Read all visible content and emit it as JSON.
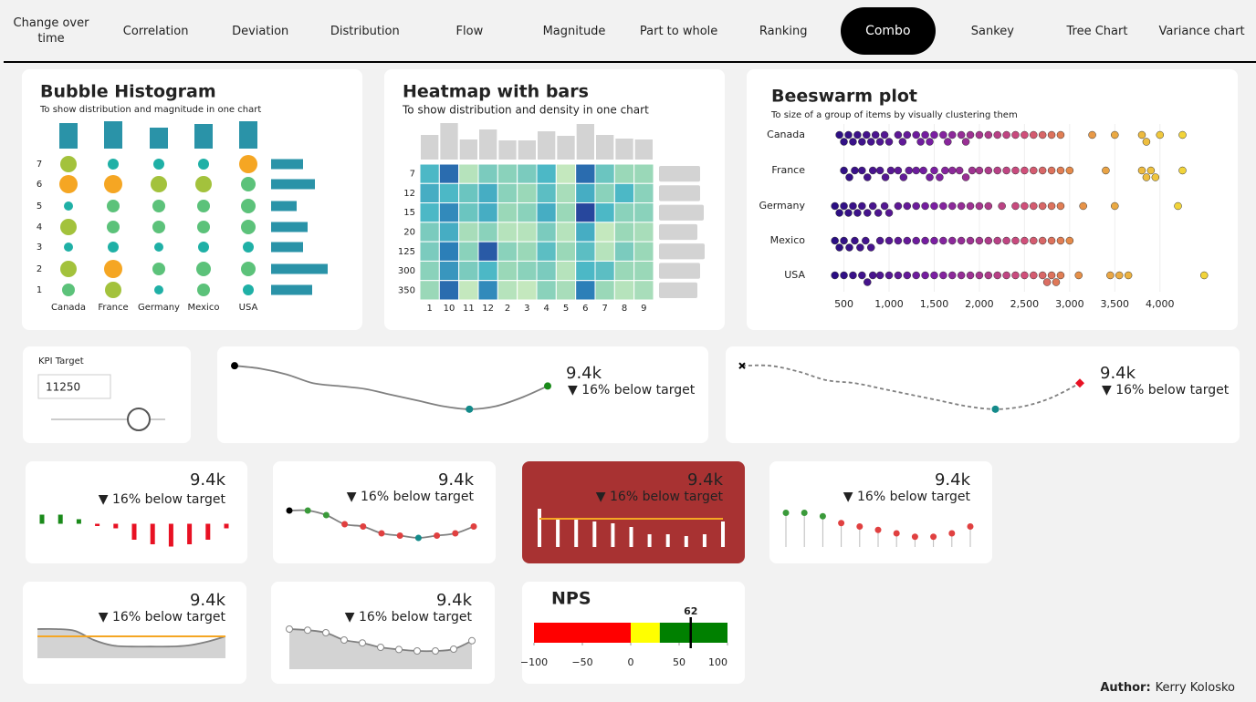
{
  "nav": {
    "items": [
      "Change over time",
      "Correlation",
      "Deviation",
      "Distribution",
      "Flow",
      "Magnitude",
      "Part to whole",
      "Ranking",
      "Combo",
      "Sankey",
      "Tree Chart",
      "Variance chart"
    ],
    "active": 8
  },
  "bubble_histogram": {
    "title": "Bubble Histogram",
    "subtitle": "To show distribution and magnitude in one chart",
    "categories": [
      "Canada",
      "France",
      "Germany",
      "Mexico",
      "USA"
    ],
    "rows": [
      "7",
      "6",
      "5",
      "4",
      "3",
      "2",
      "1"
    ],
    "sizes": [
      [
        9,
        6,
        6,
        6,
        10
      ],
      [
        10,
        10,
        9,
        9,
        8
      ],
      [
        5,
        7,
        7,
        7,
        8
      ],
      [
        9,
        7,
        7,
        7,
        8
      ],
      [
        5,
        6,
        5,
        6,
        6
      ],
      [
        9,
        10,
        7,
        8,
        8
      ],
      [
        7,
        9,
        5,
        7,
        6
      ]
    ],
    "column_bars": [
      28,
      30,
      23,
      27,
      30
    ],
    "row_bars": [
      35,
      48,
      28,
      40,
      35,
      62,
      45
    ],
    "bar_color": "#2a93a8",
    "size_colors": [
      {
        "min": 0,
        "color": "#1fb0a6"
      },
      {
        "min": 7,
        "color": "#5cc27a"
      },
      {
        "min": 9,
        "color": "#a3c23c"
      },
      {
        "min": 10,
        "color": "#f5a623"
      }
    ]
  },
  "heatmap": {
    "title": "Heatmap with bars",
    "subtitle": "To show distribution and density in one chart",
    "rows": [
      "7",
      "12",
      "15",
      "20",
      "125",
      "300",
      "350"
    ],
    "columns": [
      "1",
      "10",
      "11",
      "12",
      "2",
      "3",
      "4",
      "5",
      "6",
      "7",
      "8",
      "9"
    ],
    "values": [
      [
        0.55,
        0.85,
        0.2,
        0.4,
        0.35,
        0.4,
        0.55,
        0.15,
        0.85,
        0.45,
        0.3,
        0.3
      ],
      [
        0.6,
        0.55,
        0.45,
        0.6,
        0.35,
        0.3,
        0.5,
        0.25,
        0.6,
        0.35,
        0.55,
        0.35
      ],
      [
        0.55,
        0.75,
        0.45,
        0.6,
        0.3,
        0.35,
        0.6,
        0.3,
        0.95,
        0.55,
        0.35,
        0.35
      ],
      [
        0.4,
        0.6,
        0.25,
        0.35,
        0.2,
        0.2,
        0.4,
        0.2,
        0.6,
        0.15,
        0.3,
        0.25
      ],
      [
        0.4,
        0.8,
        0.35,
        0.9,
        0.35,
        0.3,
        0.5,
        0.3,
        0.5,
        0.2,
        0.4,
        0.3
      ],
      [
        0.35,
        0.7,
        0.4,
        0.55,
        0.3,
        0.35,
        0.4,
        0.2,
        0.55,
        0.5,
        0.3,
        0.3
      ],
      [
        0.3,
        0.85,
        0.15,
        0.75,
        0.2,
        0.15,
        0.35,
        0.25,
        0.8,
        0.3,
        0.2,
        0.25
      ]
    ],
    "column_bars": [
      27,
      40,
      22,
      33,
      21,
      21,
      31,
      26,
      39,
      27,
      23,
      22
    ],
    "row_bars": [
      45,
      45,
      49,
      42,
      50,
      45,
      42
    ],
    "bar_color": "#d3d3d3",
    "colors": [
      {
        "value": 0,
        "color": "#edf8c4"
      },
      {
        "value": 0.3,
        "color": "#9ad8b8"
      },
      {
        "value": 0.55,
        "color": "#4cb8c6"
      },
      {
        "value": 0.8,
        "color": "#2c7fb8"
      },
      {
        "value": 1,
        "color": "#253494"
      }
    ]
  },
  "beeswarm": {
    "title": "Beeswarm plot",
    "subtitle": "To size of a group of items by visually clustering them",
    "groups": [
      {
        "name": "Canada",
        "values": [
          450,
          500,
          550,
          600,
          650,
          700,
          750,
          800,
          850,
          900,
          950,
          1000,
          1100,
          1150,
          1200,
          1300,
          1350,
          1400,
          1450,
          1500,
          1600,
          1650,
          1700,
          1800,
          1850,
          1900,
          2000,
          2100,
          2200,
          2300,
          2400,
          2500,
          2600,
          2700,
          2800,
          2900,
          3250,
          3500,
          3800,
          3850,
          4000,
          4250
        ]
      },
      {
        "name": "France",
        "values": [
          500,
          560,
          620,
          700,
          760,
          820,
          900,
          960,
          1020,
          1100,
          1160,
          1220,
          1300,
          1380,
          1450,
          1500,
          1560,
          1620,
          1700,
          1780,
          1850,
          1920,
          2000,
          2100,
          2200,
          2300,
          2400,
          2500,
          2600,
          2700,
          2800,
          2900,
          3000,
          3400,
          3800,
          3850,
          3900,
          3950,
          4250
        ]
      },
      {
        "name": "Germany",
        "values": [
          400,
          450,
          500,
          550,
          600,
          650,
          700,
          760,
          820,
          880,
          950,
          1000,
          1100,
          1200,
          1300,
          1400,
          1500,
          1600,
          1700,
          1800,
          1900,
          2000,
          2100,
          2250,
          2400,
          2500,
          2600,
          2700,
          2800,
          2900,
          3150,
          3500,
          4200
        ]
      },
      {
        "name": "Mexico",
        "values": [
          400,
          450,
          500,
          560,
          620,
          680,
          740,
          800,
          900,
          1000,
          1100,
          1200,
          1300,
          1400,
          1500,
          1600,
          1700,
          1800,
          1900,
          2000,
          2100,
          2200,
          2300,
          2400,
          2500,
          2600,
          2700,
          2800,
          2900,
          3000
        ]
      },
      {
        "name": "USA",
        "values": [
          400,
          500,
          600,
          700,
          760,
          820,
          900,
          1000,
          1100,
          1200,
          1300,
          1400,
          1500,
          1600,
          1700,
          1800,
          1900,
          2000,
          2100,
          2200,
          2300,
          2400,
          2500,
          2600,
          2700,
          2750,
          2800,
          2850,
          2900,
          3100,
          3450,
          3550,
          3650,
          4490
        ]
      }
    ],
    "xlim": [
      100,
      4700
    ],
    "xticks": [
      500,
      {
        "value": 1000,
        "label": "1,000"
      },
      {
        "value": 1500,
        "label": "1,500"
      },
      {
        "value": 2000,
        "label": "2,000"
      },
      {
        "value": 2500,
        "label": "2,500"
      },
      {
        "value": 3000,
        "label": "3,000"
      },
      {
        "value": 3500,
        "label": "3,500"
      },
      {
        "value": 4000,
        "label": "4,000"
      }
    ],
    "grid": true,
    "colors": [
      {
        "value": 400,
        "color": "#2a0e82"
      },
      {
        "value": 1500,
        "color": "#7b1fa2"
      },
      {
        "value": 2500,
        "color": "#d04f7a"
      },
      {
        "value": 3000,
        "color": "#e58a4a"
      },
      {
        "value": 4200,
        "color": "#f2d43a"
      }
    ]
  },
  "kpi_target": {
    "label": "KPI Target",
    "value": 11250
  },
  "cards": [
    {
      "kpi": "9.4k",
      "status": "▼ 16% below target",
      "style": "line",
      "values": [
        9.95,
        9.9,
        9.8,
        9.65,
        9.6,
        9.55,
        9.45,
        9.35,
        9.25,
        9.2,
        9.25,
        9.4,
        9.6
      ],
      "ylim": [
        9.15,
        10
      ],
      "line_color": "#808080",
      "markers": {
        "start": "#000000",
        "min": "#138a8a",
        "end": "#1a8a1a"
      }
    },
    {
      "kpi": "9.4k",
      "status": "▼ 16% below target",
      "style": "line",
      "dashed": true,
      "values": [
        9.95,
        9.95,
        9.85,
        9.7,
        9.65,
        9.55,
        9.45,
        9.35,
        9.25,
        9.2,
        9.25,
        9.4,
        9.65
      ],
      "ylim": [
        9.15,
        10
      ],
      "line_color": "#808080",
      "markers": {
        "start": "#000000",
        "min": "#138a8a",
        "end": "#e81123"
      }
    },
    {
      "kpi": "9.4k",
      "status": "▼ 16% below target",
      "style": "diverging",
      "values": [
        8,
        8,
        4,
        -2,
        -4,
        -14,
        -18,
        -20,
        -18,
        -14,
        -4
      ],
      "ylim": [
        -22,
        10
      ],
      "positive_color": "#1a8a1a",
      "negative_color": "#e81123"
    },
    {
      "kpi": "9.4k",
      "status": "▼ 16% below target",
      "style": "dots",
      "values": [
        9.9,
        9.9,
        9.8,
        9.6,
        9.55,
        9.4,
        9.35,
        9.3,
        9.35,
        9.4,
        9.55
      ],
      "ylim": [
        9.2,
        10
      ],
      "line_color": "#808080",
      "point_colors": [
        "#000000",
        "#3a9a3a",
        "#3a9a3a",
        "#e04040",
        "#e04040",
        "#e04040",
        "#e04040",
        "#138a8a",
        "#e04040",
        "#e04040",
        "#e04040"
      ]
    },
    {
      "kpi": "9.4k",
      "status": "▼ 16% below target",
      "style": "bars",
      "background": "#a83232",
      "text_color": "#ffffff",
      "values": [
        42,
        32,
        30,
        28,
        26,
        22,
        14,
        14,
        12,
        14,
        28
      ],
      "ylim": [
        0,
        45
      ],
      "target": 31,
      "bar_color": "#ffffff",
      "target_color": "#f5a623"
    },
    {
      "kpi": "9.4k",
      "status": "▼ 16% below target",
      "style": "lollipop",
      "values": [
        10,
        10,
        9,
        7,
        6,
        5,
        4,
        3,
        3,
        4,
        6
      ],
      "ylim": [
        0,
        12
      ],
      "point_colors": [
        "#3a9a3a",
        "#3a9a3a",
        "#3a9a3a",
        "#e04040",
        "#e04040",
        "#e04040",
        "#e04040",
        "#e04040",
        "#e04040",
        "#e04040",
        "#e04040"
      ]
    },
    {
      "kpi": "9.4k",
      "status": "▼ 16% below target",
      "style": "area",
      "values": [
        9.9,
        9.9,
        9.85,
        9.6,
        9.45,
        9.42,
        9.42,
        9.42,
        9.45,
        9.55,
        9.7
      ],
      "ylim": [
        9.1,
        10
      ],
      "target": 9.7,
      "line_color": "#808080",
      "fill": "#d3d3d3",
      "target_color": "#f5a623"
    },
    {
      "kpi": "9.4k",
      "status": "▼ 16% below target",
      "style": "area",
      "values": [
        10,
        9.97,
        9.9,
        9.7,
        9.62,
        9.5,
        9.44,
        9.4,
        9.4,
        9.45,
        9.68
      ],
      "ylim": [
        8.9,
        10.1
      ],
      "line_color": "#808080",
      "fill": "#d3d3d3",
      "dot_color": "#ffffff"
    }
  ],
  "nps": {
    "title": "NPS",
    "value": 62,
    "xlim": [
      -100,
      100
    ],
    "xticks": [
      {
        "value": -100,
        "label": "−100"
      },
      {
        "value": -50,
        "label": "−50"
      },
      0,
      50,
      100
    ],
    "bands": [
      {
        "from": -100,
        "to": 0,
        "color": "#ff0000"
      },
      {
        "from": 0,
        "to": 30,
        "color": "#ffff00"
      },
      {
        "from": 30,
        "to": 100,
        "color": "#008000"
      }
    ]
  },
  "author": {
    "label": "Author:",
    "name": "Kerry Kolosko"
  }
}
